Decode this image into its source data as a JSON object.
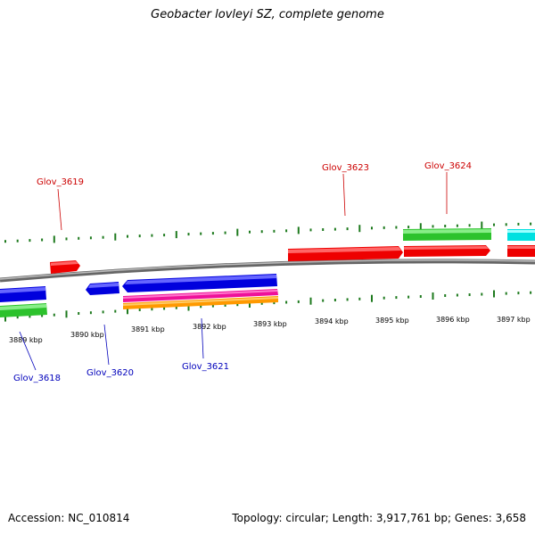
{
  "title": "Geobacter lovleyi SZ, complete genome",
  "footer": {
    "accession": "Accession: NC_010814",
    "stats": "Topology: circular; Length: 3,917,761 bp; Genes: 3,658"
  },
  "colors": {
    "backbone": "#808080",
    "tick": "#1e7a1e",
    "forward_label": "#cc0000",
    "reverse_label": "#0000bb"
  },
  "ruler": {
    "labels": [
      "3889 kbp",
      "3890 kbp",
      "3891 kbp",
      "3892 kbp",
      "3893 kbp",
      "3894 kbp",
      "3895 kbp",
      "3896 kbp",
      "3897 kbp"
    ]
  },
  "genes_forward": [
    {
      "label": "Glov_3619",
      "color": "#ee0000"
    },
    {
      "label": "Glov_3623",
      "color": "#ee0000"
    },
    {
      "label": "Glov_3624",
      "color": "#ee0000"
    }
  ],
  "genes_reverse": [
    {
      "label": "Glov_3618",
      "color": "#0000ee"
    },
    {
      "label": "Glov_3620",
      "color": "#0000ee"
    },
    {
      "label": "Glov_3621",
      "color": "#0000ee"
    }
  ],
  "other_features": [
    {
      "name": "forward-green-feature",
      "color": "#33cc33"
    },
    {
      "name": "forward-cyan-feature",
      "color": "#00eeee"
    },
    {
      "name": "reverse-green-feature",
      "color": "#33cc33"
    },
    {
      "name": "reverse-magenta-feature",
      "color": "#ee1199"
    },
    {
      "name": "reverse-orange-feature",
      "color": "#ff9900"
    }
  ]
}
